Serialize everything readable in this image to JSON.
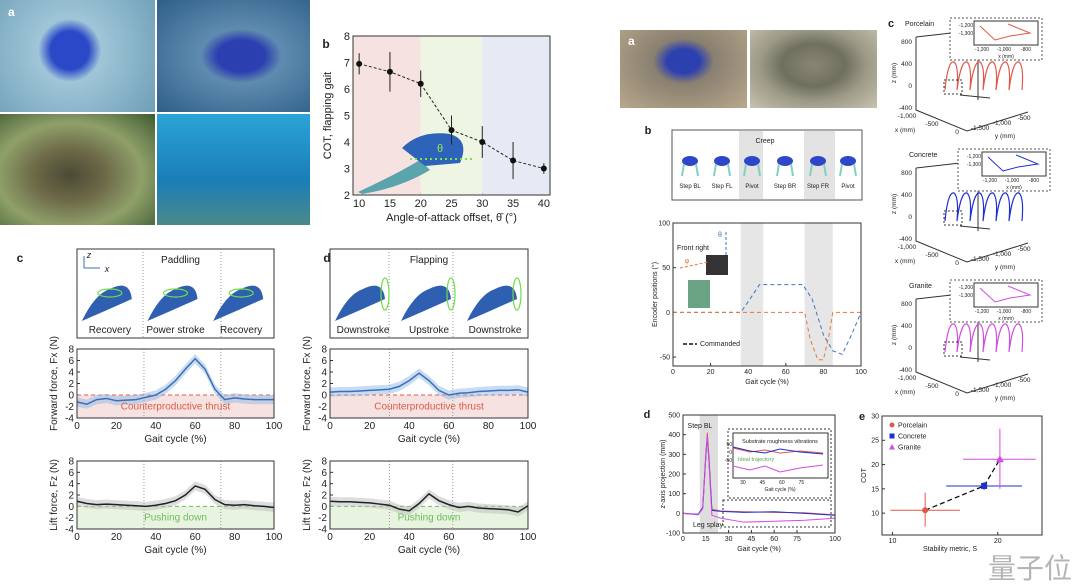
{
  "left_figure": {
    "photos_label": "a",
    "b": {
      "label": "b"
    },
    "c": {
      "label": "c",
      "gait": "Paddling",
      "axis_z": "z",
      "axis_x": "x",
      "phases": [
        "Recovery",
        "Power stroke",
        "Recovery"
      ]
    },
    "d": {
      "label": "d",
      "gait": "Flapping",
      "phases": [
        "Downstroke",
        "Upstroke",
        "Downstroke"
      ]
    },
    "theta_symbol": "θ"
  },
  "right_figure": {
    "photos_label": "a",
    "b": {
      "label": "b",
      "gait": "Creep",
      "steps": [
        "Step BL",
        "Step FL",
        "Pivot",
        "Step BR",
        "Step FR",
        "Pivot"
      ],
      "inset_label": "Front right",
      "theta": "θ",
      "phi": "φ"
    },
    "c": {
      "label": "c"
    },
    "d": {
      "label": "d"
    },
    "e": {
      "label": "e"
    }
  },
  "watermark": "量子位",
  "colors": {
    "pink_band": "#f6e3e1",
    "green_band": "#eef5e3",
    "blue_band": "#e6eaf4",
    "blue": "#3b6fb6",
    "red_dash": "#e05a4a",
    "porcelain": "#e0584a",
    "concrete": "#1f2fd0",
    "granite": "#d24de0"
  },
  "chart_data": [
    {
      "id": "left_b",
      "type": "line",
      "title": "",
      "xlabel": "Angle-of-attack offset, θ̄ (°)",
      "ylabel": "COT, flapping gait",
      "x": [
        10,
        15,
        20,
        25,
        30,
        35,
        40
      ],
      "y": [
        6.95,
        6.65,
        6.2,
        4.45,
        4.0,
        3.3,
        3.0
      ],
      "yerr": [
        0.4,
        0.75,
        0.5,
        0.55,
        0.6,
        0.7,
        0.2
      ],
      "xlim": [
        9,
        41
      ],
      "ylim": [
        2,
        8
      ],
      "xticks": [
        10,
        15,
        20,
        25,
        30,
        35,
        40
      ],
      "yticks": [
        2,
        3,
        4,
        5,
        6,
        7,
        8
      ]
    },
    {
      "id": "left_c_fx",
      "type": "line",
      "xlabel": "Gait cycle (%)",
      "ylabel": "Forward force, Fx (N)",
      "annotation": "Counterproductive thrust",
      "x": [
        0,
        5,
        10,
        15,
        20,
        25,
        30,
        35,
        40,
        45,
        50,
        55,
        60,
        65,
        70,
        75,
        80,
        85,
        90,
        95,
        100
      ],
      "y": [
        -1.2,
        -1.6,
        -0.8,
        -0.6,
        -1,
        -0.9,
        -0.8,
        -0.4,
        0,
        1,
        2.5,
        4.5,
        6.3,
        4.5,
        1,
        -0.8,
        -0.5,
        -0.7,
        -0.8,
        -0.8,
        -0.8
      ],
      "xlim": [
        0,
        100
      ],
      "ylim": [
        -4,
        8
      ],
      "xticks": [
        0,
        20,
        40,
        60,
        80,
        100
      ],
      "yticks": [
        -4,
        -2,
        0,
        2,
        4,
        6,
        8
      ],
      "phase_lines": [
        34,
        73
      ]
    },
    {
      "id": "left_c_fz",
      "type": "line",
      "xlabel": "Gait cycle (%)",
      "ylabel": "Lift force, Fz (N)",
      "annotation": "Pushing down",
      "x": [
        0,
        5,
        10,
        15,
        20,
        25,
        30,
        35,
        40,
        45,
        50,
        55,
        60,
        65,
        70,
        75,
        80,
        85,
        90,
        95,
        100
      ],
      "y": [
        0.9,
        0.5,
        0.3,
        0.4,
        0.3,
        0.2,
        0.1,
        0,
        0.2,
        0.5,
        1,
        2,
        3.6,
        3,
        1.2,
        0.3,
        0.2,
        0.3,
        0.1,
        0,
        -0.2
      ],
      "xlim": [
        0,
        100
      ],
      "ylim": [
        -4,
        8
      ],
      "xticks": [
        0,
        20,
        40,
        60,
        80,
        100
      ],
      "yticks": [
        -4,
        -2,
        0,
        2,
        4,
        6,
        8
      ],
      "phase_lines": [
        34,
        73
      ]
    },
    {
      "id": "left_d_fx",
      "type": "line",
      "xlabel": "Gait cycle (%)",
      "ylabel": "Forward force, Fx (N)",
      "annotation": "Counterproductive thrust",
      "x": [
        0,
        5,
        10,
        15,
        20,
        25,
        30,
        35,
        40,
        45,
        50,
        55,
        60,
        65,
        70,
        75,
        80,
        85,
        90,
        95,
        100
      ],
      "y": [
        0.5,
        0.6,
        0.6,
        0.7,
        0.8,
        0.9,
        1,
        1.5,
        2.5,
        3.8,
        2.5,
        0.8,
        0,
        0.3,
        0.4,
        0.6,
        0.7,
        0.8,
        0.8,
        0.9,
        0.5
      ],
      "xlim": [
        0,
        100
      ],
      "ylim": [
        -4,
        8
      ],
      "xticks": [
        0,
        20,
        40,
        60,
        80,
        100
      ],
      "yticks": [
        -4,
        -2,
        0,
        2,
        4,
        6,
        8
      ],
      "phase_lines": [
        30,
        62
      ]
    },
    {
      "id": "left_d_fz",
      "type": "line",
      "xlabel": "Gait cycle (%)",
      "ylabel": "Lift force, Fz (N)",
      "annotation": "Pushing down",
      "x": [
        0,
        5,
        10,
        15,
        20,
        25,
        30,
        35,
        40,
        45,
        50,
        55,
        60,
        65,
        70,
        75,
        80,
        85,
        90,
        95,
        100
      ],
      "y": [
        0.9,
        0.8,
        0.8,
        0.7,
        0.6,
        0.4,
        0.2,
        -0.5,
        -0.8,
        0.5,
        2.2,
        1,
        0.3,
        -0.2,
        0,
        -0.3,
        -0.4,
        -0.5,
        -0.6,
        -1,
        0.1
      ],
      "xlim": [
        0,
        100
      ],
      "ylim": [
        -4,
        8
      ],
      "xticks": [
        0,
        20,
        40,
        60,
        80,
        100
      ],
      "yticks": [
        -4,
        -2,
        0,
        2,
        4,
        6,
        8
      ],
      "phase_lines": [
        30,
        62
      ]
    },
    {
      "id": "right_b",
      "type": "line",
      "xlabel": "Gait cycle (%)",
      "ylabel": "Encoder positions (°)",
      "legend": "Commanded",
      "series": [
        {
          "name": "theta",
          "color": "#3b78c2",
          "points": [
            [
              0,
              0
            ],
            [
              36,
              0
            ],
            [
              41,
              15
            ],
            [
              46,
              31
            ],
            [
              69,
              31
            ],
            [
              74,
              15
            ],
            [
              80,
              -25
            ],
            [
              85,
              -43
            ],
            [
              90,
              -47
            ],
            [
              95,
              -25
            ],
            [
              100,
              0
            ]
          ]
        },
        {
          "name": "phi",
          "color": "#e07a3a",
          "points": [
            [
              0,
              0
            ],
            [
              70,
              0
            ],
            [
              73,
              -30
            ],
            [
              77,
              -53
            ],
            [
              80,
              -53
            ],
            [
              83,
              -25
            ],
            [
              85,
              0
            ],
            [
              100,
              0
            ]
          ]
        }
      ],
      "xlim": [
        0,
        100
      ],
      "ylim": [
        -60,
        100
      ],
      "xticks": [
        0,
        20,
        40,
        60,
        80,
        100
      ],
      "yticks": [
        -50,
        0,
        50,
        100
      ],
      "shaded": [
        [
          36,
          48
        ],
        [
          70,
          85
        ]
      ]
    },
    {
      "id": "right_d",
      "type": "line",
      "xlabel": "Gait cycle (%)",
      "ylabel": "z-axis projection (mm)",
      "annotation_top": "Step BL",
      "annotation_bottom": "Leg splay",
      "inset": {
        "title": "Substrate roughness vibrations",
        "trace_label": "Ideal trajectory",
        "xlabel": "Gait cycle (%)",
        "ylabel": "z (mm)",
        "xticks": [
          30,
          45,
          60,
          75
        ],
        "yticks": [
          -50,
          0,
          50
        ]
      },
      "series": [
        {
          "name": "Porcelain",
          "color": "#e0584a",
          "points": [
            [
              0,
              0
            ],
            [
              10,
              -5
            ],
            [
              13,
              30
            ],
            [
              15,
              300
            ],
            [
              16,
              410
            ],
            [
              17,
              300
            ],
            [
              19,
              20
            ],
            [
              25,
              12
            ],
            [
              40,
              8
            ],
            [
              60,
              5
            ],
            [
              80,
              3
            ],
            [
              100,
              -8
            ]
          ]
        },
        {
          "name": "Concrete",
          "color": "#1f2fd0",
          "points": [
            [
              0,
              0
            ],
            [
              10,
              -5
            ],
            [
              13,
              30
            ],
            [
              15,
              290
            ],
            [
              16,
              385
            ],
            [
              17,
              280
            ],
            [
              19,
              15
            ],
            [
              25,
              10
            ],
            [
              40,
              5
            ],
            [
              60,
              8
            ],
            [
              80,
              0
            ],
            [
              100,
              -10
            ]
          ]
        },
        {
          "name": "Granite",
          "color": "#d24de0",
          "points": [
            [
              0,
              0
            ],
            [
              10,
              -8
            ],
            [
              13,
              25
            ],
            [
              15,
              280
            ],
            [
              16,
              395
            ],
            [
              17,
              270
            ],
            [
              19,
              -10
            ],
            [
              25,
              -25
            ],
            [
              40,
              -45
            ],
            [
              60,
              -40
            ],
            [
              80,
              -35
            ],
            [
              100,
              -25
            ]
          ]
        }
      ],
      "xlim": [
        0,
        100
      ],
      "ylim": [
        -100,
        500
      ],
      "xticks": [
        0,
        15,
        30,
        45,
        60,
        75,
        100
      ],
      "yticks": [
        -100,
        0,
        100,
        200,
        300,
        400,
        500
      ],
      "shaded": [
        [
          11,
          23
        ]
      ]
    },
    {
      "id": "right_e",
      "type": "scatter",
      "xlabel": "Stability metric, S",
      "ylabel": "COT",
      "series": [
        {
          "name": "Porcelain",
          "marker": "circle",
          "color": "#e0584a",
          "x": 13.1,
          "y": 10.6,
          "xerr": [
            9.8,
            16.4
          ],
          "yerr": [
            7.2,
            14.2
          ]
        },
        {
          "name": "Concrete",
          "marker": "square",
          "color": "#1f2fd0",
          "x": 18.7,
          "y": 15.6,
          "xerr": [
            15.1,
            22.3
          ],
          "yerr": [
            14.8,
            16.4
          ]
        },
        {
          "name": "Granite",
          "marker": "triangle",
          "color": "#d24de0",
          "x": 20.2,
          "y": 21.1,
          "xerr": [
            16.7,
            23.6
          ],
          "yerr": [
            15.0,
            27.4
          ]
        }
      ],
      "xlim": [
        9,
        24.2
      ],
      "ylim": [
        5.5,
        30
      ],
      "xticks": [
        10,
        20
      ],
      "yticks": [
        10,
        15,
        20,
        25,
        30
      ],
      "legend": "top-left"
    },
    {
      "id": "right_c",
      "type": "line",
      "panels": [
        {
          "title": "Porcelain",
          "color": "#e0584a"
        },
        {
          "title": "Concrete",
          "color": "#1f2fd0"
        },
        {
          "title": "Granite",
          "color": "#d24de0"
        }
      ],
      "zticks": [
        "800",
        "400",
        "0",
        "-400"
      ],
      "xticks": [
        "-1,000",
        "-500",
        "0"
      ],
      "yticks": [
        "-1,500",
        "-1,000",
        "-500"
      ],
      "zlabel": "z (mm)",
      "xlabel": "x (mm)",
      "ylabel": "y (mm)",
      "inset": {
        "xticks": [
          "-1,200",
          "-1,000",
          "-800"
        ],
        "yticks": [
          "-1,200",
          "-1,300"
        ],
        "xlabel": "x (mm)",
        "ylabel": "y (mm)"
      }
    }
  ]
}
